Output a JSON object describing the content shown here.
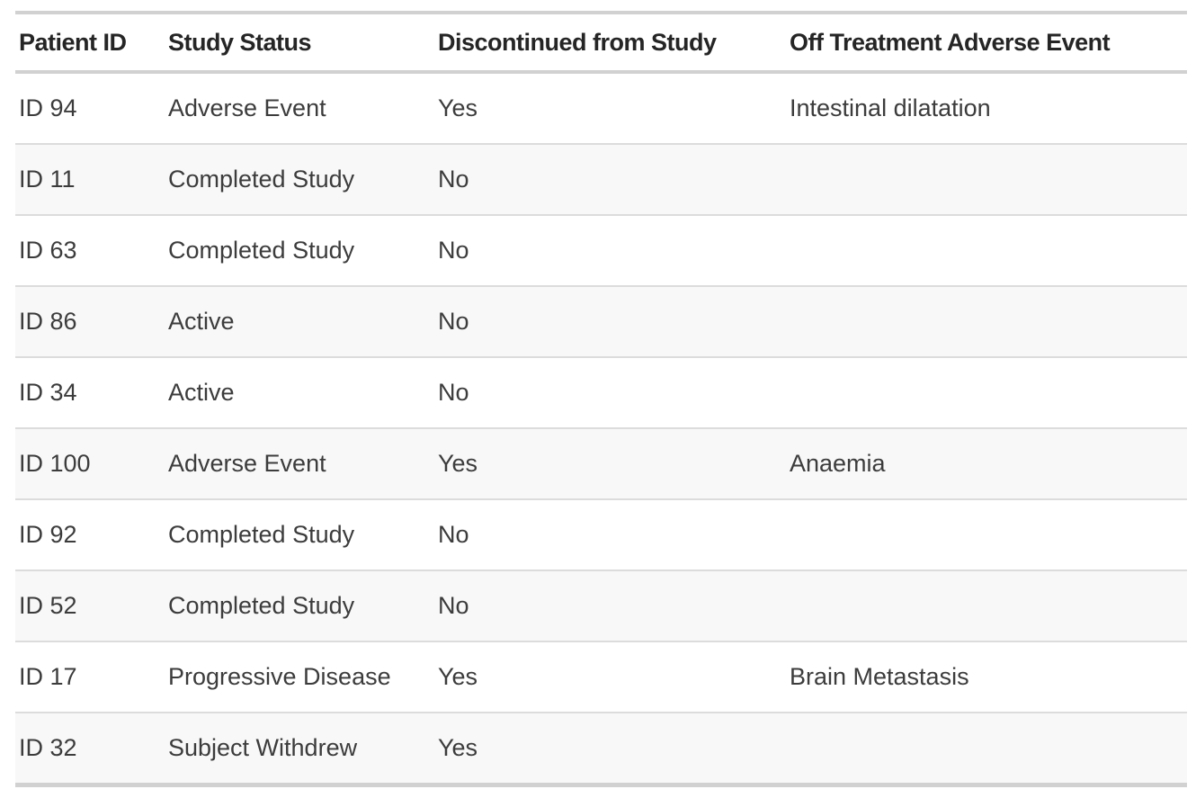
{
  "chart_data": {
    "type": "table",
    "columns": [
      "Patient ID",
      "Study Status",
      "Discontinued from Study",
      "Off Treatment Adverse Event"
    ],
    "rows": [
      [
        "ID 94",
        "Adverse Event",
        "Yes",
        "Intestinal dilatation"
      ],
      [
        "ID 11",
        "Completed Study",
        "No",
        ""
      ],
      [
        "ID 63",
        "Completed Study",
        "No",
        ""
      ],
      [
        "ID 86",
        "Active",
        "No",
        ""
      ],
      [
        "ID 34",
        "Active",
        "No",
        ""
      ],
      [
        "ID 100",
        "Adverse Event",
        "Yes",
        "Anaemia"
      ],
      [
        "ID 92",
        "Completed Study",
        "No",
        ""
      ],
      [
        "ID 52",
        "Completed Study",
        "No",
        ""
      ],
      [
        "ID 17",
        "Progressive Disease",
        "Yes",
        "Brain Metastasis"
      ],
      [
        "ID 32",
        "Subject Withdrew",
        "Yes",
        ""
      ]
    ]
  },
  "colors": {
    "page_background": "#ffffff",
    "row_alt_background": "#f8f8f8",
    "border_strong": "#d1d1d1",
    "border_row_separator": "#dcdcdc",
    "header_text": "#252525",
    "cell_text": "#3c3c3c"
  }
}
